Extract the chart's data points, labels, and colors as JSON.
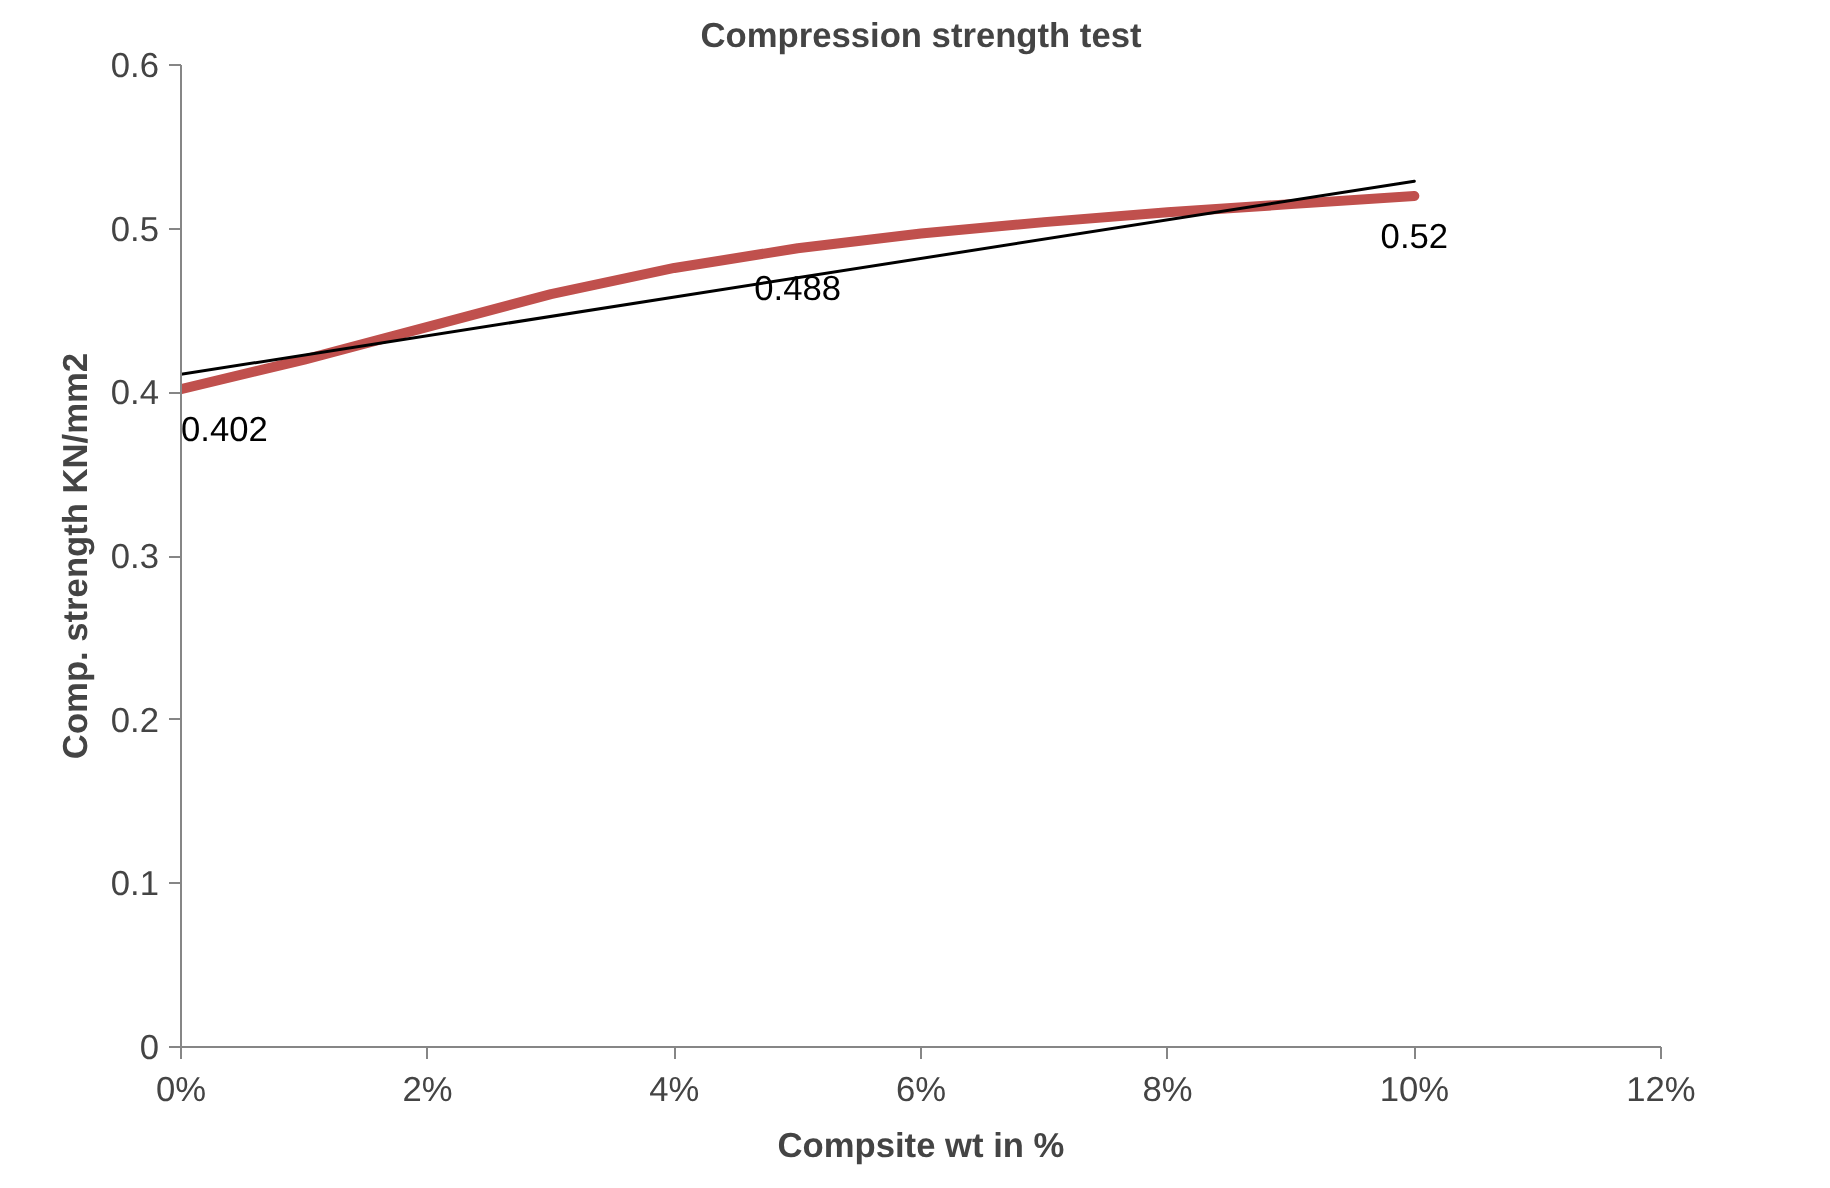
{
  "chart_data": {
    "type": "line",
    "title": "Compression strength test",
    "xlabel": "Compsite wt in %",
    "ylabel": "Comp. strength KN/mm2",
    "x": [
      0,
      1,
      2,
      3,
      4,
      5,
      6,
      7,
      8,
      9,
      10
    ],
    "series": [
      {
        "color": "#c0504d",
        "values": [
          0.402,
          0.42,
          0.44,
          0.46,
          0.476,
          0.488,
          0.497,
          0.504,
          0.51,
          0.515,
          0.52
        ],
        "value_labels": [
          "0.402",
          null,
          null,
          null,
          null,
          "0.488",
          null,
          null,
          null,
          null,
          "0.52"
        ]
      },
      {
        "color": "#000000",
        "x": [
          0,
          10
        ],
        "values": [
          0.411,
          0.529
        ]
      }
    ],
    "xlim": [
      0,
      12
    ],
    "xticks": [
      {
        "value": 0,
        "label": "0%"
      },
      {
        "value": 2,
        "label": "2%"
      },
      {
        "value": 4,
        "label": "4%"
      },
      {
        "value": 6,
        "label": "6%"
      },
      {
        "value": 8,
        "label": "8%"
      },
      {
        "value": 10,
        "label": "10%"
      },
      {
        "value": 12,
        "label": "12%"
      }
    ],
    "ylim": [
      0,
      0.6
    ],
    "yticks": [
      0,
      0.1,
      0.2,
      0.3,
      0.4,
      0.5,
      0.6
    ],
    "marker": "none",
    "line_style": "solid"
  }
}
